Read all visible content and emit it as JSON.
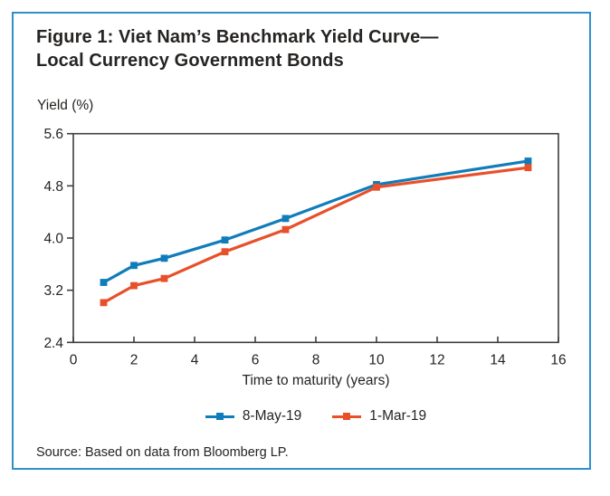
{
  "figure": {
    "title_line1": "Figure 1: Viet Nam’s Benchmark Yield Curve—",
    "title_line2": "Local Currency Government Bonds",
    "source": "Source: Based on data from Bloomberg LP.",
    "border_color": "#2e90cf",
    "text_color": "#262422",
    "axis_color": "#3e3e3e"
  },
  "chart_data": {
    "type": "line",
    "title": "Viet Nam's Benchmark Yield Curve - Local Currency Government Bonds",
    "y_axis_label": "Yield (%)",
    "x_axis_label": "Time to maturity (years)",
    "xlim": [
      0,
      16
    ],
    "ylim": [
      2.4,
      5.6
    ],
    "x_ticks": [
      0,
      2,
      4,
      6,
      8,
      10,
      12,
      14,
      16
    ],
    "y_ticks": [
      2.4,
      3.2,
      4.0,
      4.8,
      5.6
    ],
    "grid": false,
    "legend_position": "bottom-center",
    "marker": "square",
    "x": [
      1,
      2,
      3,
      5,
      7,
      10,
      15
    ],
    "series": [
      {
        "name": "8-May-19",
        "color": "#107cba",
        "values": [
          3.32,
          3.58,
          3.69,
          3.97,
          4.3,
          4.82,
          5.18
        ]
      },
      {
        "name": "1-Mar-19",
        "color": "#e8502a",
        "values": [
          3.01,
          3.27,
          3.38,
          3.79,
          4.13,
          4.78,
          5.08
        ]
      }
    ]
  }
}
